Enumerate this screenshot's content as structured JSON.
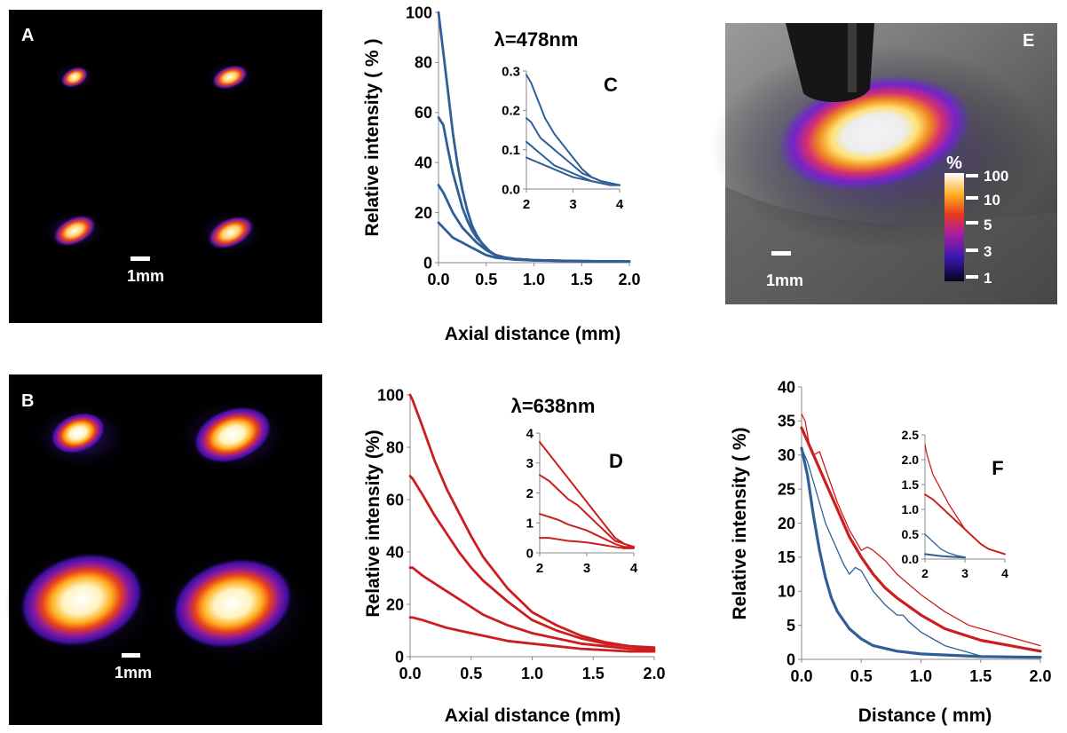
{
  "panels": {
    "A": {
      "letter": "A",
      "scale_label": "1mm"
    },
    "B": {
      "letter": "B",
      "scale_label": "1mm"
    },
    "E": {
      "letter": "E",
      "scale_label": "1mm",
      "colorbar_unit": "%",
      "colorbar_ticks": [
        "100",
        "10",
        "5",
        "3",
        "1"
      ]
    }
  },
  "colors": {
    "blue": "#2F5F96",
    "red": "#CC1E1E",
    "black": "#000000"
  },
  "chart_data": [
    {
      "id": "C",
      "type": "line",
      "letter": "C",
      "annotation": "λ=478nm",
      "xlabel": "Axial distance (mm)",
      "ylabel": "Relative intensity ( % )",
      "xlim": [
        0,
        2
      ],
      "ylim": [
        0,
        100
      ],
      "xticks": [
        "0.0",
        "0.5",
        "1.0",
        "1.5",
        "2.0"
      ],
      "yticks": [
        "0",
        "20",
        "40",
        "60",
        "80",
        "100"
      ],
      "series": [
        {
          "color": "blue",
          "x": [
            0,
            0.05,
            0.1,
            0.15,
            0.2,
            0.25,
            0.3,
            0.35,
            0.4,
            0.45,
            0.5,
            0.6,
            0.7,
            0.8,
            1.0,
            1.2,
            1.5,
            2.0
          ],
          "y": [
            100,
            84,
            68,
            52,
            39,
            29,
            21,
            15,
            11,
            8,
            5.5,
            3,
            2,
            1.5,
            1,
            0.8,
            0.6,
            0.5
          ]
        },
        {
          "color": "blue",
          "x": [
            0,
            0.05,
            0.1,
            0.15,
            0.2,
            0.25,
            0.3,
            0.35,
            0.4,
            0.45,
            0.5,
            0.55,
            0.6,
            0.7,
            0.8,
            1.0,
            1.5,
            2.0
          ],
          "y": [
            58,
            55,
            45,
            36,
            29,
            22,
            17,
            13,
            10,
            8,
            6,
            4,
            3,
            2,
            1.5,
            1,
            0.6,
            0.5
          ]
        },
        {
          "color": "blue",
          "x": [
            0,
            0.05,
            0.1,
            0.15,
            0.2,
            0.25,
            0.3,
            0.35,
            0.4,
            0.45,
            0.5,
            0.55,
            0.6,
            0.7,
            0.8,
            1.0,
            1.5,
            2.0
          ],
          "y": [
            31,
            28,
            24,
            20,
            17,
            14,
            12,
            10,
            8,
            6.5,
            5,
            4,
            3,
            2,
            1.5,
            1,
            0.6,
            0.5
          ]
        },
        {
          "color": "blue",
          "x": [
            0,
            0.05,
            0.1,
            0.15,
            0.2,
            0.25,
            0.3,
            0.35,
            0.4,
            0.45,
            0.5,
            0.55,
            0.6,
            0.7,
            0.8,
            1.0,
            1.5,
            2.0
          ],
          "y": [
            16,
            14,
            12,
            10,
            9,
            8,
            7,
            6,
            5,
            4,
            3,
            2.5,
            2,
            1.6,
            1.2,
            0.9,
            0.6,
            0.5
          ]
        }
      ],
      "inset": {
        "xlim": [
          2,
          4
        ],
        "ylim": [
          0,
          0.3
        ],
        "xticks": [
          "2",
          "3",
          "4"
        ],
        "yticks": [
          "0.0",
          "0.1",
          "0.2",
          "0.3"
        ],
        "series": [
          {
            "color": "blue",
            "x": [
              2,
              2.1,
              2.2,
              2.3,
              2.4,
              2.5,
              2.6,
              2.8,
              3.0,
              3.2,
              3.4,
              3.6,
              3.8,
              4.0
            ],
            "y": [
              0.29,
              0.27,
              0.24,
              0.21,
              0.18,
              0.16,
              0.14,
              0.11,
              0.08,
              0.05,
              0.03,
              0.02,
              0.015,
              0.01
            ]
          },
          {
            "color": "blue",
            "x": [
              2,
              2.1,
              2.2,
              2.3,
              2.4,
              2.5,
              2.6,
              2.8,
              3.0,
              3.2,
              3.4,
              3.6,
              3.8,
              4.0
            ],
            "y": [
              0.18,
              0.17,
              0.15,
              0.13,
              0.12,
              0.11,
              0.1,
              0.08,
              0.06,
              0.04,
              0.03,
              0.02,
              0.015,
              0.01
            ]
          },
          {
            "color": "blue",
            "x": [
              2,
              2.1,
              2.2,
              2.3,
              2.4,
              2.5,
              2.6,
              2.8,
              3.0,
              3.2,
              3.4,
              3.6,
              3.8,
              4.0
            ],
            "y": [
              0.12,
              0.11,
              0.1,
              0.09,
              0.08,
              0.07,
              0.06,
              0.05,
              0.04,
              0.03,
              0.02,
              0.015,
              0.01,
              0.01
            ]
          },
          {
            "color": "blue",
            "x": [
              2,
              2.1,
              2.2,
              2.3,
              2.4,
              2.5,
              2.6,
              2.8,
              3.0,
              3.2,
              3.4,
              3.6,
              3.8,
              4.0
            ],
            "y": [
              0.08,
              0.075,
              0.07,
              0.065,
              0.06,
              0.055,
              0.05,
              0.04,
              0.03,
              0.025,
              0.02,
              0.015,
              0.01,
              0.01
            ]
          }
        ]
      }
    },
    {
      "id": "D",
      "type": "line",
      "letter": "D",
      "annotation": "λ=638nm",
      "xlabel": "Axial distance (mm)",
      "ylabel": "Relative intensity (%)",
      "xlim": [
        0,
        2
      ],
      "ylim": [
        0,
        100
      ],
      "xticks": [
        "0.0",
        "0.5",
        "1.0",
        "1.5",
        "2.0"
      ],
      "yticks": [
        "0",
        "20",
        "40",
        "60",
        "80",
        "100"
      ],
      "series": [
        {
          "color": "red",
          "x": [
            0,
            0.02,
            0.1,
            0.2,
            0.3,
            0.4,
            0.5,
            0.6,
            0.8,
            1.0,
            1.2,
            1.4,
            1.6,
            1.8,
            2.0
          ],
          "y": [
            100,
            98,
            88,
            75,
            64,
            55,
            46,
            38,
            26,
            17,
            12,
            8,
            5.5,
            4,
            3.5
          ]
        },
        {
          "color": "red",
          "x": [
            0,
            0.02,
            0.1,
            0.2,
            0.3,
            0.4,
            0.5,
            0.6,
            0.8,
            1.0,
            1.2,
            1.4,
            1.6,
            1.8,
            2.0
          ],
          "y": [
            69,
            68,
            62,
            54,
            47,
            40,
            34,
            29,
            21,
            14,
            10,
            7,
            5,
            4,
            3
          ]
        },
        {
          "color": "red",
          "x": [
            0,
            0.02,
            0.1,
            0.2,
            0.3,
            0.4,
            0.5,
            0.6,
            0.8,
            1.0,
            1.2,
            1.4,
            1.6,
            1.8,
            2.0
          ],
          "y": [
            34,
            34,
            31,
            28,
            25,
            22,
            19,
            16,
            12,
            9,
            7,
            5,
            4,
            3,
            2.5
          ]
        },
        {
          "color": "red",
          "x": [
            0,
            0.02,
            0.1,
            0.2,
            0.3,
            0.4,
            0.5,
            0.6,
            0.8,
            1.0,
            1.2,
            1.4,
            1.6,
            1.8,
            2.0
          ],
          "y": [
            15,
            15,
            14,
            12.5,
            11,
            10,
            9,
            8,
            6,
            5,
            4,
            3,
            2.5,
            2,
            2
          ]
        }
      ],
      "inset": {
        "xlim": [
          2,
          4
        ],
        "ylim": [
          0,
          4
        ],
        "xticks": [
          "2",
          "3",
          "4"
        ],
        "yticks": [
          "0",
          "1",
          "2",
          "3",
          "4"
        ],
        "series": [
          {
            "color": "red",
            "x": [
              2,
              2.2,
              2.4,
              2.6,
              2.8,
              3.0,
              3.2,
              3.4,
              3.6,
              3.8,
              4.0
            ],
            "y": [
              3.7,
              3.3,
              2.9,
              2.5,
              2.1,
              1.7,
              1.3,
              0.9,
              0.5,
              0.3,
              0.2
            ]
          },
          {
            "color": "red",
            "x": [
              2,
              2.2,
              2.4,
              2.6,
              2.8,
              3.0,
              3.2,
              3.4,
              3.6,
              3.8,
              4.0
            ],
            "y": [
              2.6,
              2.4,
              2.1,
              1.8,
              1.6,
              1.3,
              1.0,
              0.7,
              0.4,
              0.3,
              0.2
            ]
          },
          {
            "color": "red",
            "x": [
              2,
              2.2,
              2.4,
              2.6,
              2.8,
              3.0,
              3.2,
              3.4,
              3.6,
              3.8,
              4.0
            ],
            "y": [
              1.3,
              1.2,
              1.1,
              0.95,
              0.85,
              0.75,
              0.6,
              0.45,
              0.3,
              0.2,
              0.2
            ]
          },
          {
            "color": "red",
            "x": [
              2,
              2.2,
              2.4,
              2.6,
              2.8,
              3.0,
              3.2,
              3.4,
              3.6,
              3.8,
              4.0
            ],
            "y": [
              0.5,
              0.5,
              0.45,
              0.4,
              0.38,
              0.35,
              0.3,
              0.25,
              0.2,
              0.15,
              0.15
            ]
          }
        ]
      }
    },
    {
      "id": "F",
      "type": "line",
      "letter": "F",
      "xlabel": "Distance ( mm)",
      "ylabel": "Relative intensity ( %)",
      "xlim": [
        0,
        2
      ],
      "ylim": [
        0,
        40
      ],
      "xticks": [
        "0.0",
        "0.5",
        "1.0",
        "1.5",
        "2.0"
      ],
      "yticks": [
        "0",
        "5",
        "10",
        "15",
        "20",
        "25",
        "30",
        "35",
        "40"
      ],
      "series": [
        {
          "color": "blue",
          "weight": "thick",
          "x": [
            0,
            0.05,
            0.1,
            0.15,
            0.2,
            0.25,
            0.3,
            0.4,
            0.5,
            0.6,
            0.8,
            1.0,
            1.5,
            2.0
          ],
          "y": [
            31,
            27,
            21,
            16,
            12,
            9,
            7,
            4.5,
            3,
            2,
            1.2,
            0.8,
            0.4,
            0.3
          ]
        },
        {
          "color": "blue",
          "weight": "thin",
          "x": [
            0,
            0.05,
            0.1,
            0.15,
            0.2,
            0.25,
            0.3,
            0.35,
            0.4,
            0.45,
            0.5,
            0.55,
            0.6,
            0.7,
            0.8,
            0.85,
            0.9,
            1.0,
            1.1,
            1.2,
            1.3,
            1.4,
            1.5
          ],
          "y": [
            31,
            29,
            26,
            23,
            20,
            18,
            16,
            14,
            12.5,
            13.5,
            13,
            11.5,
            10,
            8,
            6.5,
            6.5,
            5.5,
            4,
            3,
            2,
            1.5,
            1,
            0.5
          ]
        },
        {
          "color": "red",
          "weight": "thick",
          "x": [
            0,
            0.05,
            0.1,
            0.2,
            0.3,
            0.4,
            0.5,
            0.6,
            0.7,
            0.8,
            1.0,
            1.2,
            1.5,
            2.0
          ],
          "y": [
            34,
            32,
            30,
            26,
            22,
            18,
            15,
            12.5,
            10.5,
            9,
            6.5,
            4.5,
            2.8,
            1.2
          ]
        },
        {
          "color": "red",
          "weight": "thin",
          "x": [
            0,
            0.03,
            0.07,
            0.1,
            0.15,
            0.2,
            0.3,
            0.4,
            0.5,
            0.55,
            0.6,
            0.7,
            0.8,
            0.9,
            1.0,
            1.2,
            1.4,
            1.6,
            1.8,
            2.0
          ],
          "y": [
            36,
            35,
            31,
            30,
            30.5,
            28,
            23,
            19,
            16,
            16.5,
            16,
            14.5,
            12.5,
            11,
            9.5,
            7,
            5,
            4,
            3,
            2
          ]
        }
      ],
      "inset": {
        "xlim": [
          2,
          4
        ],
        "ylim": [
          0,
          2.5
        ],
        "xticks": [
          "2",
          "3",
          "4"
        ],
        "yticks": [
          "0.0",
          "0.5",
          "1.0",
          "1.5",
          "2.0",
          "2.5"
        ],
        "series": [
          {
            "color": "red",
            "weight": "thin",
            "x": [
              2,
              2.05,
              2.2,
              2.4,
              2.6,
              2.8,
              3.0,
              3.2,
              3.4,
              3.6,
              3.8,
              4.0
            ],
            "y": [
              2.3,
              2.1,
              1.7,
              1.4,
              1.1,
              0.85,
              0.6,
              0.45,
              0.3,
              0.2,
              0.15,
              0.1
            ]
          },
          {
            "color": "red",
            "weight": "thick",
            "x": [
              2,
              2.2,
              2.4,
              2.6,
              2.8,
              3.0,
              3.2,
              3.4,
              3.6,
              3.8,
              4.0
            ],
            "y": [
              1.3,
              1.2,
              1.05,
              0.9,
              0.75,
              0.6,
              0.45,
              0.3,
              0.2,
              0.15,
              0.1
            ]
          },
          {
            "color": "blue",
            "weight": "thin",
            "x": [
              2,
              2.2,
              2.4,
              2.6,
              2.8,
              3.0
            ],
            "y": [
              0.5,
              0.35,
              0.2,
              0.12,
              0.07,
              0.04
            ]
          },
          {
            "color": "blue",
            "weight": "thick",
            "x": [
              2,
              2.2,
              2.4,
              2.6,
              2.8,
              3.0
            ],
            "y": [
              0.1,
              0.08,
              0.06,
              0.05,
              0.04,
              0.03
            ]
          }
        ]
      }
    }
  ]
}
